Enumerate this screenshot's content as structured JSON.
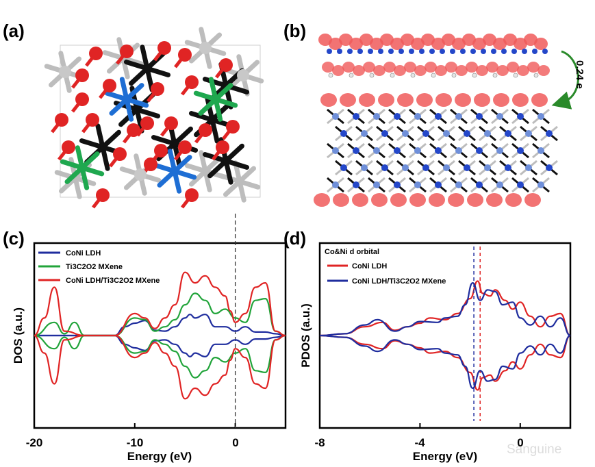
{
  "panels": {
    "a": {
      "label": "(a)"
    },
    "b": {
      "label": "(b)",
      "transfer_label": "0.24 e"
    },
    "c": {
      "label": "(c)"
    },
    "d": {
      "label": "(d)"
    }
  },
  "watermark": "Sanguine",
  "colors": {
    "red": "#e02424",
    "blue": "#1f2d9e",
    "green": "#21a43a",
    "black": "#111111",
    "grey": "#bdbdbd",
    "atom_blue": "#1e6ed4",
    "atom_green": "#1fa84f",
    "arrow_green": "#2a8a2a"
  },
  "chart_data": [
    {
      "panel": "c",
      "type": "line",
      "xlabel": "Energy (eV)",
      "ylabel": "DOS (a.u.)",
      "xlim": [
        -20,
        5
      ],
      "xticks": [
        -20,
        -10,
        0
      ],
      "tick_labels": [
        "-20",
        "-10",
        "0"
      ],
      "fermi_level": 0,
      "legend_position": "top-left",
      "series": [
        {
          "name": "CoNi LDH",
          "color": "#1f2d9e",
          "x": [
            -20,
            -12,
            -11,
            -10,
            -9,
            -8,
            -7,
            -6,
            -5,
            -4.5,
            -4,
            -3,
            -2,
            -1,
            0,
            1,
            2,
            3,
            4,
            5
          ],
          "y": [
            0,
            0,
            0.1,
            0.14,
            0.17,
            0.06,
            0.05,
            0.1,
            0.2,
            0.24,
            0.2,
            0.24,
            0.1,
            0.1,
            0.05,
            0.1,
            0.04,
            0.04,
            0.02,
            0
          ]
        },
        {
          "name": "Ti3C2O2 MXene",
          "color": "#21a43a",
          "x": [
            -20,
            -18,
            -17,
            -16,
            -15,
            -12,
            -10,
            -9,
            -8,
            -7,
            -6,
            -5,
            -4,
            -3,
            -2,
            -1,
            0,
            1,
            2,
            3,
            4,
            5
          ],
          "y": [
            0,
            0.15,
            0.02,
            0.15,
            0,
            0,
            0.2,
            0.18,
            0.05,
            0.1,
            0.18,
            0.35,
            0.48,
            0.4,
            0.25,
            0.3,
            0.2,
            0.15,
            0.4,
            0.42,
            0.05,
            0
          ]
        },
        {
          "name": "CoNi LDH/Ti3C2O2 MXene",
          "color": "#e02424",
          "x": [
            -20,
            -19,
            -18,
            -17,
            -15,
            -12,
            -10,
            -9,
            -8,
            -7,
            -6,
            -5,
            -4,
            -3,
            -2,
            -1,
            -0.5,
            0,
            1,
            2,
            3,
            4,
            5
          ],
          "y": [
            0,
            0.2,
            0.55,
            0.05,
            0,
            0,
            0.25,
            0.2,
            0.08,
            0.2,
            0.35,
            0.72,
            0.6,
            0.68,
            0.55,
            0.45,
            0.28,
            0.15,
            0.25,
            0.55,
            0.6,
            0.05,
            0
          ]
        }
      ]
    },
    {
      "panel": "d",
      "type": "line",
      "xlabel": "Energy (eV)",
      "ylabel": "PDOS (a.u.)",
      "xlim": [
        -8,
        2
      ],
      "xticks": [
        -8,
        -4,
        0
      ],
      "tick_labels": [
        "-8",
        "-4",
        "0"
      ],
      "legend_title": "Co&Ni d orbital",
      "legend_position": "top-left",
      "series": [
        {
          "name": "CoNi LDH",
          "color": "#e02424",
          "vline": -1.6,
          "x": [
            -8,
            -7,
            -6.2,
            -5.5,
            -5,
            -4.5,
            -4,
            -3.6,
            -3,
            -2.5,
            -2,
            -1.7,
            -1.5,
            -1.2,
            -1,
            -0.6,
            -0.3,
            0,
            0.4,
            0.8,
            1.2,
            1.6,
            2
          ],
          "y": [
            0,
            0.02,
            0.1,
            0.15,
            0.06,
            0.1,
            0.14,
            0.2,
            0.18,
            0.25,
            0.42,
            0.62,
            0.48,
            0.45,
            0.52,
            0.4,
            0.3,
            0.38,
            0.22,
            0.1,
            0.22,
            0.25,
            0
          ]
        },
        {
          "name": "CoNi LDH/Ti3C2O2 MXene",
          "color": "#1f2d9e",
          "vline": -1.85,
          "x": [
            -8,
            -7,
            -6.2,
            -5.7,
            -5,
            -4.5,
            -4,
            -3.3,
            -3,
            -2.5,
            -2.2,
            -1.9,
            -1.6,
            -1.3,
            -1,
            -0.7,
            -0.3,
            0,
            0.4,
            0.8,
            1.2,
            1.6,
            2
          ],
          "y": [
            0,
            0.02,
            0.12,
            0.18,
            0.05,
            0.1,
            0.16,
            0.15,
            0.2,
            0.22,
            0.35,
            0.6,
            0.4,
            0.52,
            0.5,
            0.35,
            0.38,
            0.2,
            0.12,
            0.22,
            0.1,
            0.2,
            0
          ]
        }
      ]
    }
  ]
}
